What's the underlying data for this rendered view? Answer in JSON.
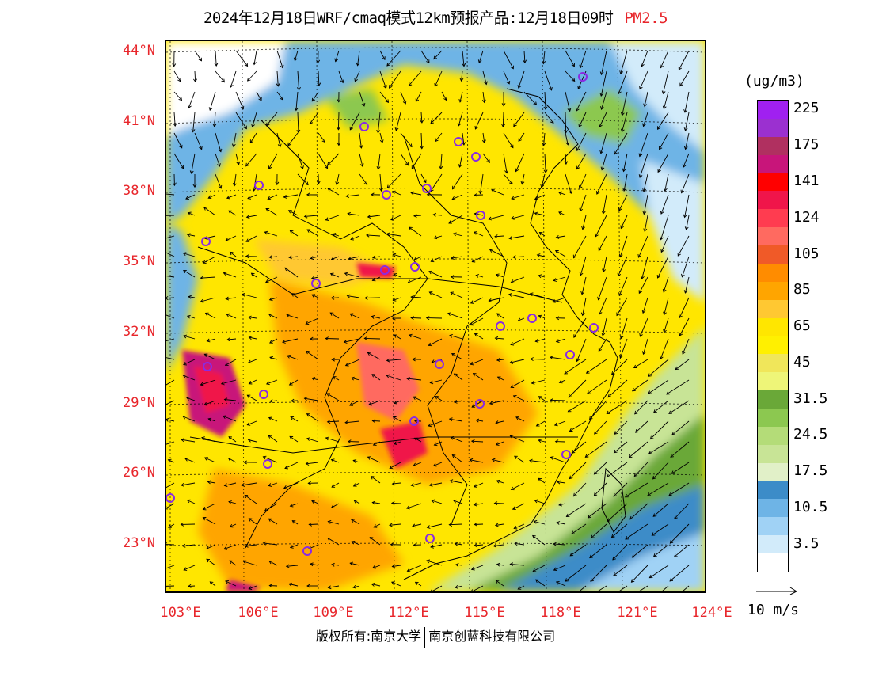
{
  "header": {
    "title": "2024年12月18日WRF/cmaq模式12km预报产品:12月18日09时",
    "product": "PM2.5"
  },
  "axes": {
    "lat_labels": [
      "44°N",
      "41°N",
      "38°N",
      "35°N",
      "32°N",
      "29°N",
      "26°N",
      "23°N"
    ],
    "lon_labels": [
      "103°E",
      "106°E",
      "109°E",
      "112°E",
      "115°E",
      "118°E",
      "121°E",
      "124°E"
    ]
  },
  "legend": {
    "unit": "(ug/m3)",
    "levels": [
      {
        "label": "225",
        "color": "#a020f0"
      },
      {
        "label": "",
        "color": "#9b30d0"
      },
      {
        "label": "175",
        "color": "#b03060"
      },
      {
        "label": "",
        "color": "#c8157a"
      },
      {
        "label": "141",
        "color": "#ff0000"
      },
      {
        "label": "",
        "color": "#f0154a"
      },
      {
        "label": "124",
        "color": "#ff3c50"
      },
      {
        "label": "",
        "color": "#ff6a60"
      },
      {
        "label": "105",
        "color": "#f05a28"
      },
      {
        "label": "",
        "color": "#ff8c00"
      },
      {
        "label": "85",
        "color": "#ffa500"
      },
      {
        "label": "",
        "color": "#ffc832"
      },
      {
        "label": "65",
        "color": "#ffe600"
      },
      {
        "label": "",
        "color": "#fff000"
      },
      {
        "label": "45",
        "color": "#f0e65a"
      },
      {
        "label": "",
        "color": "#eef578"
      },
      {
        "label": "31.5",
        "color": "#6aa838"
      },
      {
        "label": "",
        "color": "#8cc850"
      },
      {
        "label": "24.5",
        "color": "#b4dc78"
      },
      {
        "label": "",
        "color": "#c8e496"
      },
      {
        "label": "17.5",
        "color": "#e1f0c8"
      },
      {
        "label": "",
        "color": "#3c8cc8"
      },
      {
        "label": "10.5",
        "color": "#6eb4e6"
      },
      {
        "label": "",
        "color": "#a0d2f5"
      },
      {
        "label": "3.5",
        "color": "#d2ebfa"
      },
      {
        "label": "",
        "color": "#ffffff"
      }
    ],
    "wind_ref_label": "10 m/s"
  },
  "footer": {
    "left": "版权所有:南京大学",
    "right": "南京创蓝科技有限公司"
  }
}
